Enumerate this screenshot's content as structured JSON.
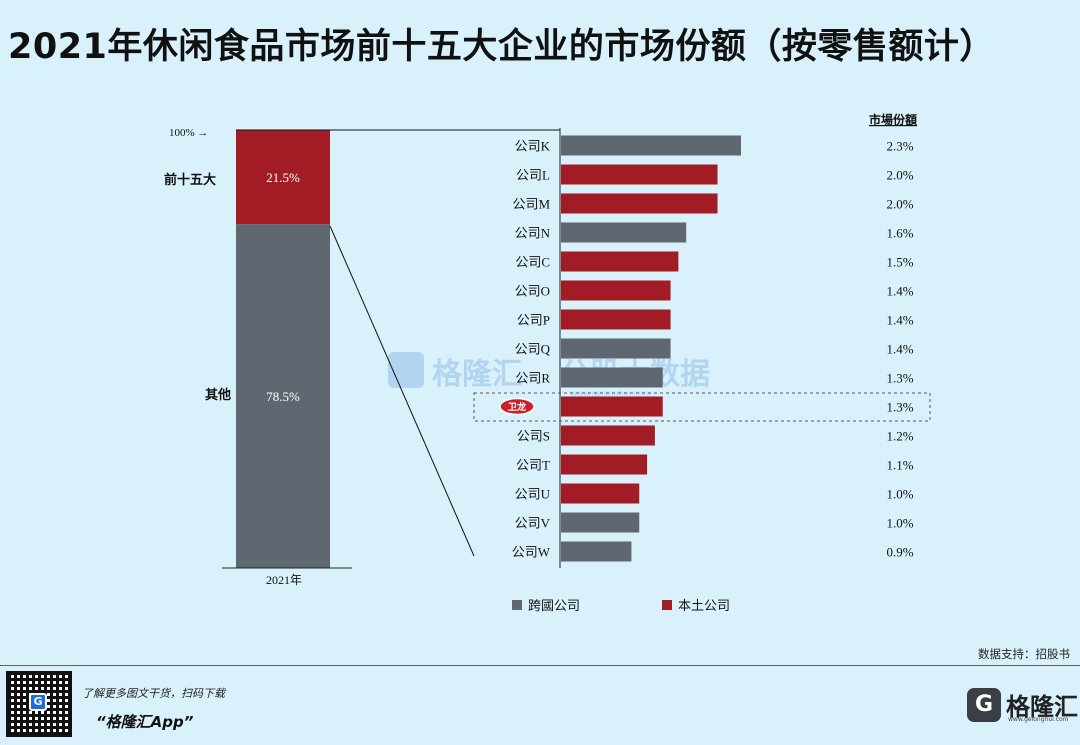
{
  "title": "2021年休闲食品市场前十五大企业的市场份额（按零售额计）",
  "chart_data": {
    "type": "bar",
    "stacked_bar": {
      "category": "2021年",
      "top_marker": "100% →",
      "segments": [
        {
          "name": "前十五大",
          "value": 21.5,
          "label": "21.5%",
          "color": "#a21c26"
        },
        {
          "name": "其他",
          "value": 78.5,
          "label": "78.5%",
          "color": "#5f6870"
        }
      ]
    },
    "share_header": "市場份額",
    "categories": [
      "公司K",
      "公司L",
      "公司M",
      "公司N",
      "公司C",
      "公司O",
      "公司P",
      "公司Q",
      "公司R",
      "卫龙",
      "公司S",
      "公司T",
      "公司U",
      "公司V",
      "公司W"
    ],
    "values": [
      2.3,
      2.0,
      2.0,
      1.6,
      1.5,
      1.4,
      1.4,
      1.4,
      1.3,
      1.3,
      1.2,
      1.1,
      1.0,
      1.0,
      0.9
    ],
    "value_labels": [
      "2.3%",
      "2.0%",
      "2.0%",
      "1.6%",
      "1.5%",
      "1.4%",
      "1.4%",
      "1.4%",
      "1.3%",
      "1.3%",
      "1.2%",
      "1.1%",
      "1.0%",
      "1.0%",
      "0.9%"
    ],
    "groups": [
      "跨國公司",
      "本土公司",
      "本土公司",
      "跨國公司",
      "本土公司",
      "本土公司",
      "本土公司",
      "跨國公司",
      "跨國公司",
      "本土公司",
      "本土公司",
      "本土公司",
      "本土公司",
      "跨國公司",
      "跨國公司"
    ],
    "highlight": "卫龙",
    "highlight_logo_text": "卫龙",
    "legend": [
      {
        "name": "跨國公司",
        "color": "#5f6870"
      },
      {
        "name": "本土公司",
        "color": "#a21c26"
      }
    ],
    "xlim": [
      0,
      2.5
    ]
  },
  "watermark": {
    "brand": "格隆汇",
    "text": "公股大数据",
    "url": "www.gelonghui.com"
  },
  "source": "数据支持：招股书",
  "footer": {
    "promo_line": "了解更多图文干货，扫码下载",
    "app_name": "“格隆汇App”",
    "qr_logo": "G",
    "brand_logo": "G",
    "brand_name": "格隆汇",
    "brand_url": "www.gelonghui.com"
  }
}
